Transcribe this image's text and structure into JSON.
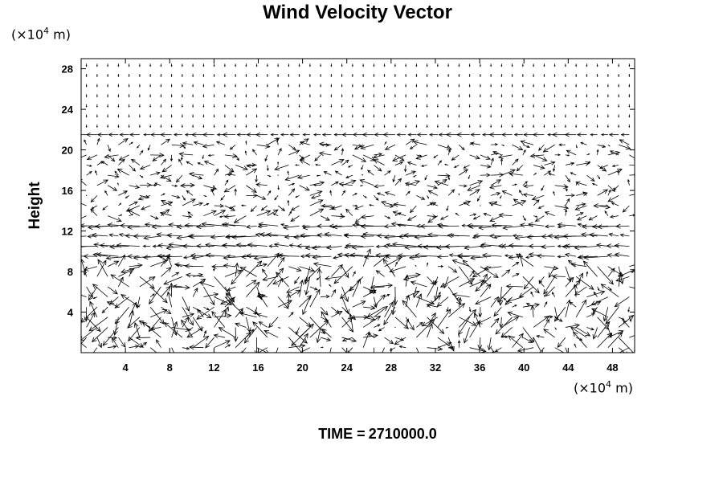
{
  "chart_data": {
    "type": "vector_field",
    "title": "Wind Velocity Vector",
    "ylabel": "Height",
    "x_unit": {
      "prefix": "(×10",
      "exp": "4",
      "suffix": " m)"
    },
    "y_unit": {
      "prefix": "(×10",
      "exp": "4",
      "suffix": " m)"
    },
    "xlim": [
      0,
      50
    ],
    "ylim": [
      0,
      29
    ],
    "x_ticks": [
      4,
      8,
      12,
      16,
      20,
      24,
      28,
      32,
      36,
      40,
      44,
      48
    ],
    "y_ticks": [
      4,
      8,
      12,
      16,
      20,
      24,
      28
    ],
    "grid": false,
    "legend": "none",
    "footer": {
      "label": "TIME =",
      "value": "2710000.0"
    }
  },
  "colors": {
    "ink": "#000000",
    "background": "#ffffff"
  }
}
